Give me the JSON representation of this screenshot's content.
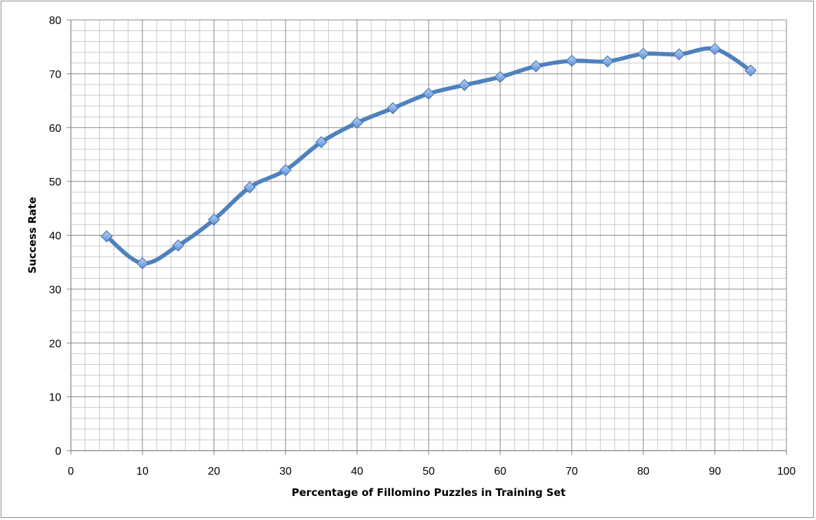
{
  "chart_data": {
    "type": "line",
    "title": "",
    "xlabel": "Percentage of Fillomino Puzzles in Training Set",
    "ylabel": "Success Rate",
    "xlim": [
      0,
      100
    ],
    "ylim": [
      0,
      80
    ],
    "x_major_ticks": [
      0,
      10,
      20,
      30,
      40,
      50,
      60,
      70,
      80,
      90,
      100
    ],
    "y_major_ticks": [
      0,
      10,
      20,
      30,
      40,
      50,
      60,
      70,
      80
    ],
    "x_minor_step": 2,
    "y_minor_step": 2,
    "grid": true,
    "legend": "none",
    "series": [
      {
        "marker": "diamond",
        "smooth": true,
        "color": "#4f81bd",
        "marker_color": "#7aa7e0",
        "x": [
          5,
          10,
          15,
          20,
          25,
          30,
          35,
          40,
          45,
          50,
          55,
          60,
          65,
          70,
          75,
          80,
          85,
          90,
          95
        ],
        "values": [
          39.8,
          34.8,
          38.1,
          42.9,
          48.9,
          52.1,
          57.3,
          60.9,
          63.6,
          66.3,
          67.9,
          69.4,
          71.4,
          72.4,
          72.3,
          73.7,
          73.6,
          74.6,
          70.6
        ]
      }
    ]
  }
}
